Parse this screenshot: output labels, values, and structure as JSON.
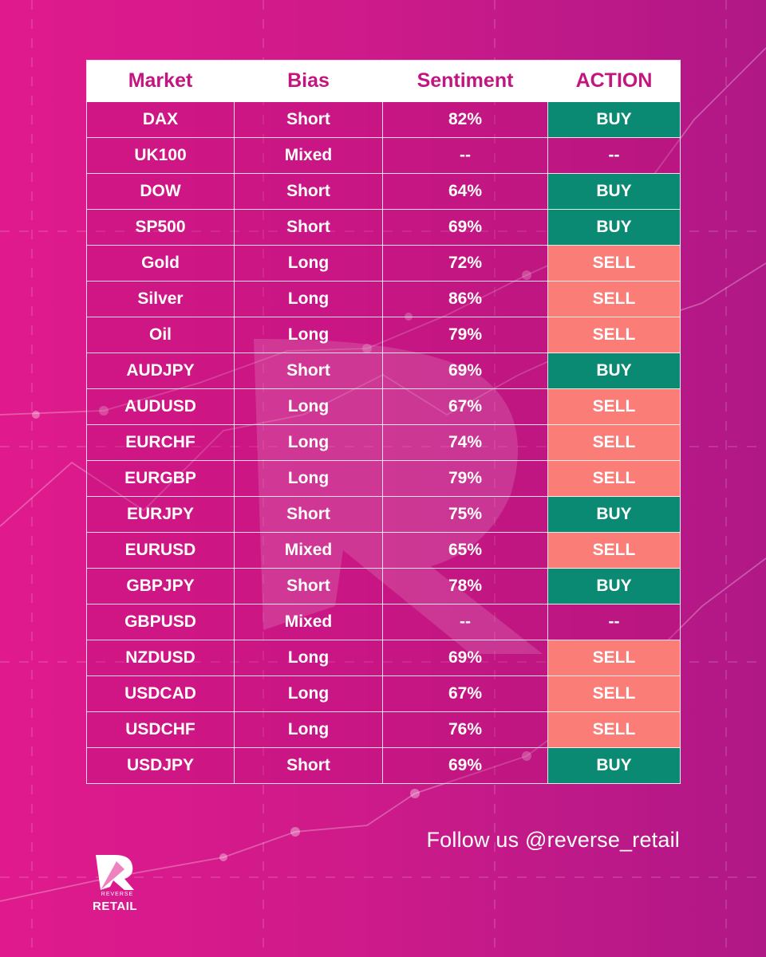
{
  "table": {
    "headers": [
      "Market",
      "Bias",
      "Sentiment",
      "ACTION"
    ],
    "rows": [
      {
        "market": "DAX",
        "bias": "Short",
        "sentiment": "82%",
        "action": "BUY"
      },
      {
        "market": "UK100",
        "bias": "Mixed",
        "sentiment": "--",
        "action": "--"
      },
      {
        "market": "DOW",
        "bias": "Short",
        "sentiment": "64%",
        "action": "BUY"
      },
      {
        "market": "SP500",
        "bias": "Short",
        "sentiment": "69%",
        "action": "BUY"
      },
      {
        "market": "Gold",
        "bias": "Long",
        "sentiment": "72%",
        "action": "SELL"
      },
      {
        "market": "Silver",
        "bias": "Long",
        "sentiment": "86%",
        "action": "SELL"
      },
      {
        "market": "Oil",
        "bias": "Long",
        "sentiment": "79%",
        "action": "SELL"
      },
      {
        "market": "AUDJPY",
        "bias": "Short",
        "sentiment": "69%",
        "action": "BUY"
      },
      {
        "market": "AUDUSD",
        "bias": "Long",
        "sentiment": "67%",
        "action": "SELL"
      },
      {
        "market": "EURCHF",
        "bias": "Long",
        "sentiment": "74%",
        "action": "SELL"
      },
      {
        "market": "EURGBP",
        "bias": "Long",
        "sentiment": "79%",
        "action": "SELL"
      },
      {
        "market": "EURJPY",
        "bias": "Short",
        "sentiment": "75%",
        "action": "BUY"
      },
      {
        "market": "EURUSD",
        "bias": "Mixed",
        "sentiment": "65%",
        "action": "SELL"
      },
      {
        "market": "GBPJPY",
        "bias": "Short",
        "sentiment": "78%",
        "action": "BUY"
      },
      {
        "market": "GBPUSD",
        "bias": "Mixed",
        "sentiment": "--",
        "action": "--"
      },
      {
        "market": "NZDUSD",
        "bias": "Long",
        "sentiment": "69%",
        "action": "SELL"
      },
      {
        "market": "USDCAD",
        "bias": "Long",
        "sentiment": "67%",
        "action": "SELL"
      },
      {
        "market": "USDCHF",
        "bias": "Long",
        "sentiment": "76%",
        "action": "SELL"
      },
      {
        "market": "USDJPY",
        "bias": "Short",
        "sentiment": "69%",
        "action": "BUY"
      }
    ]
  },
  "footer": {
    "follow_text": "Follow us @reverse_retail"
  },
  "logo": {
    "small_text": "REVERSE",
    "word": "RETAIL",
    "icon": "r-arrow-logo"
  },
  "colors": {
    "header_bg": "#ffffff",
    "header_text": "#c2157f",
    "buy": "#0a8a72",
    "sell": "#fb7d78",
    "background_left": "#e01a8d",
    "background_right": "#b01886"
  }
}
